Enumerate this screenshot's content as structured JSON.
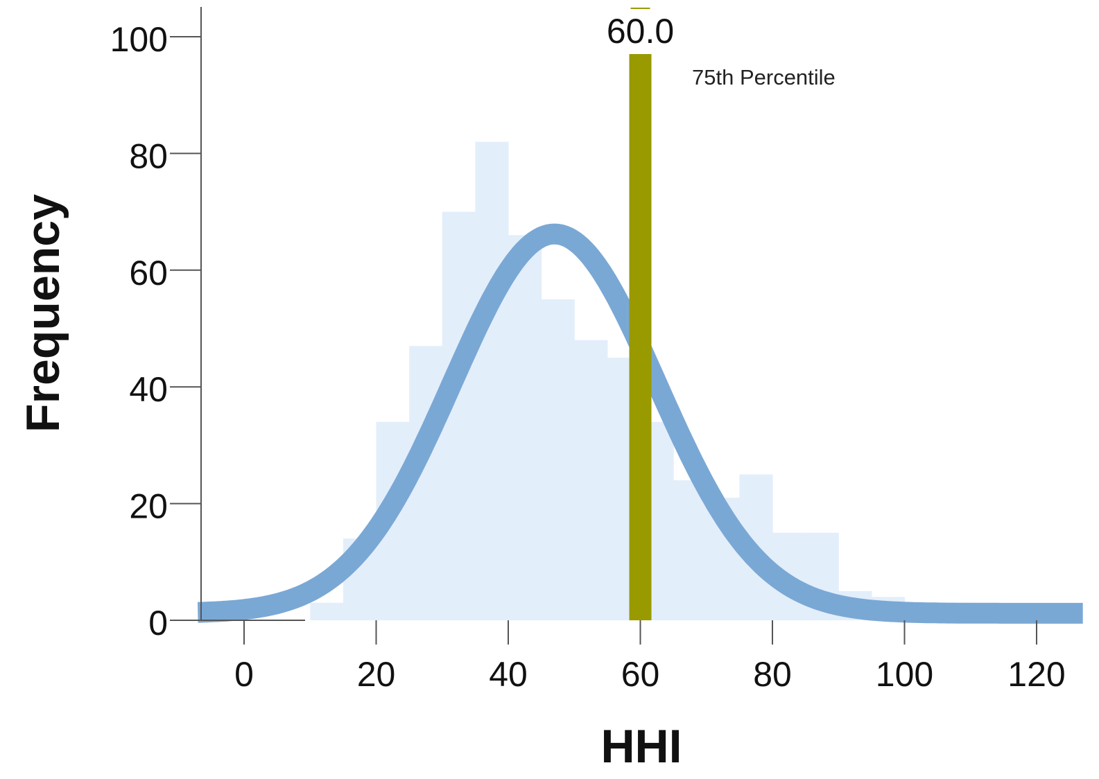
{
  "chart_data": {
    "type": "bar",
    "title": "",
    "xlabel": "HHI",
    "ylabel": "Frequency",
    "xlim": [
      -7,
      127
    ],
    "ylim": [
      0,
      105
    ],
    "x_ticks": [
      0,
      20,
      40,
      60,
      80,
      100,
      120
    ],
    "y_ticks": [
      0,
      20,
      40,
      60,
      80,
      100
    ],
    "bins": [
      {
        "from": 10,
        "to": 15,
        "count": 3
      },
      {
        "from": 15,
        "to": 20,
        "count": 14
      },
      {
        "from": 20,
        "to": 25,
        "count": 34
      },
      {
        "from": 25,
        "to": 30,
        "count": 47
      },
      {
        "from": 30,
        "to": 35,
        "count": 70
      },
      {
        "from": 35,
        "to": 40,
        "count": 82
      },
      {
        "from": 40,
        "to": 45,
        "count": 66
      },
      {
        "from": 45,
        "to": 50,
        "count": 55
      },
      {
        "from": 50,
        "to": 55,
        "count": 48
      },
      {
        "from": 55,
        "to": 60,
        "count": 45
      },
      {
        "from": 60,
        "to": 65,
        "count": 34
      },
      {
        "from": 65,
        "to": 70,
        "count": 24
      },
      {
        "from": 70,
        "to": 75,
        "count": 21
      },
      {
        "from": 75,
        "to": 80,
        "count": 25
      },
      {
        "from": 80,
        "to": 85,
        "count": 15
      },
      {
        "from": 85,
        "to": 90,
        "count": 15
      },
      {
        "from": 90,
        "to": 95,
        "count": 5
      },
      {
        "from": 95,
        "to": 100,
        "count": 4
      },
      {
        "from": 100,
        "to": 105,
        "count": 2
      },
      {
        "from": 105,
        "to": 110,
        "count": 3
      },
      {
        "from": 110,
        "to": 115,
        "count": 1
      },
      {
        "from": 115,
        "to": 120,
        "count": 1
      }
    ],
    "normal_curve": {
      "mean": 47.0,
      "sd": 15.5,
      "peak": 65
    },
    "reference_line": {
      "x": 60.0,
      "label": "60.0",
      "name": "75th Percentile"
    },
    "colors": {
      "bars": "#e3eefb",
      "curve": "#7aa8d5",
      "reference_line": "#999900",
      "axis": "#555555",
      "text": "#111111"
    },
    "grid": false,
    "legend": "none"
  }
}
